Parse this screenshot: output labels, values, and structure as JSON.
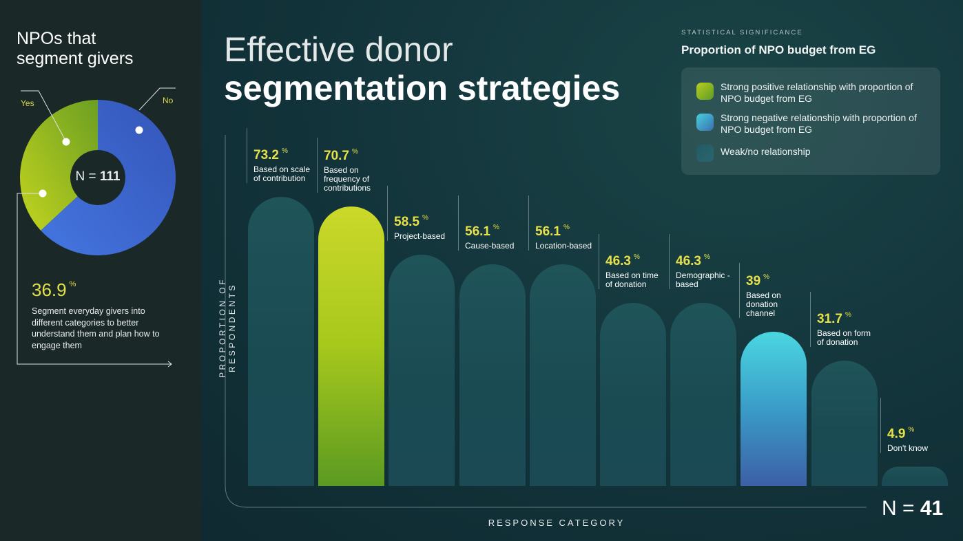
{
  "left_panel": {
    "title_line1": "NPOs that",
    "title_line2": "segment givers",
    "pie_n_label": "N = ",
    "pie_n_value": "111",
    "highlight_value": "36.9",
    "highlight_unit": "%",
    "highlight_text": "Segment everyday givers into different categories to better understand them and plan how to engage them"
  },
  "pie_chart": {
    "type": "pie",
    "slices": [
      {
        "label": "Yes",
        "value": 36.9,
        "color": "#a8c41e"
      },
      {
        "label": "No",
        "value": 63.1,
        "color": "#3f6ad8"
      }
    ]
  },
  "header": {
    "title_line1": "Effective donor",
    "title_line2": "segmentation strategies"
  },
  "legend": {
    "kicker": "STATISTICAL SIGNIFICANCE",
    "title": "Proportion of NPO budget from EG",
    "items": [
      {
        "label": "Strong positive relationship with proportion of NPO budget from EG",
        "color": "#9cc21e"
      },
      {
        "label": "Strong negative relationship with proportion of NPO budget from EG",
        "color": "#3fb8d0"
      },
      {
        "label": "Weak/no relationship",
        "color": "#235a62"
      }
    ]
  },
  "chart_data": {
    "type": "bar",
    "ylabel": "PROPORTION OF RESPONDENTS",
    "xlabel": "RESPONSE CATEGORY",
    "n_label": "N = ",
    "n_value": "41",
    "unit": "%",
    "ylim": [
      0,
      100
    ],
    "categories": [
      "Based on scale of contribution",
      "Based on frequency of contributions",
      "Project-based",
      "Cause-based",
      "Location-based",
      "Based on time of donation",
      "Demographic -based",
      "Based on donation channel",
      "Based on form of donation",
      "Don't know"
    ],
    "values": [
      73.2,
      70.7,
      58.5,
      56.1,
      56.1,
      46.3,
      46.3,
      39,
      31.7,
      4.9
    ],
    "significance": [
      "weak",
      "positive",
      "weak",
      "weak",
      "weak",
      "weak",
      "weak",
      "negative",
      "weak",
      "weak"
    ]
  }
}
